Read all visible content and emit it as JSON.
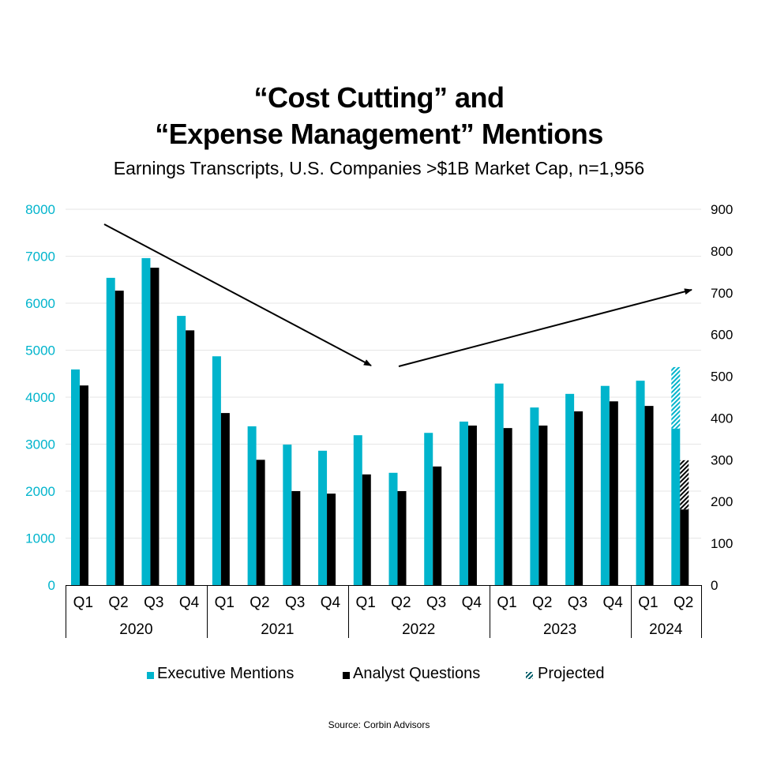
{
  "title_line1": "“Cost Cutting” and",
  "title_line2": "“Expense Management” Mentions",
  "subtitle": "Earnings Transcripts, U.S. Companies >$1B Market Cap, n=1,956",
  "source": "Source: Corbin Advisors",
  "colors": {
    "executive": "#00B4CC",
    "analyst": "#000000",
    "grid": "#E6E6E6"
  },
  "legend": [
    {
      "label": "Executive Mentions",
      "swatch": "solid-teal"
    },
    {
      "label": "Analyst Questions",
      "swatch": "solid-black"
    },
    {
      "label": "Projected",
      "swatch": "hatched"
    }
  ],
  "chart_data": {
    "type": "bar",
    "title": "“Cost Cutting” and “Expense Management” Mentions",
    "subtitle": "Earnings Transcripts, U.S. Companies >$1B Market Cap, n=1,956",
    "categories": [
      "Q1",
      "Q2",
      "Q3",
      "Q4",
      "Q1",
      "Q2",
      "Q3",
      "Q4",
      "Q1",
      "Q2",
      "Q3",
      "Q4",
      "Q1",
      "Q2",
      "Q3",
      "Q4",
      "Q1",
      "Q2"
    ],
    "groups": [
      {
        "label": "2020",
        "count": 4
      },
      {
        "label": "2021",
        "count": 4
      },
      {
        "label": "2022",
        "count": 4
      },
      {
        "label": "2023",
        "count": 4
      },
      {
        "label": "2024",
        "count": 2
      }
    ],
    "left_axis": {
      "label": "Executive Mentions",
      "ylim": [
        0,
        8000
      ],
      "ticks": [
        0,
        1000,
        2000,
        3000,
        4000,
        5000,
        6000,
        7000,
        8000
      ]
    },
    "right_axis": {
      "label": "Analyst Questions",
      "ylim": [
        0,
        900
      ],
      "ticks": [
        0,
        100,
        200,
        300,
        400,
        500,
        600,
        700,
        800,
        900
      ]
    },
    "grid": true,
    "legend_position": "bottom",
    "series": [
      {
        "name": "Executive Mentions",
        "axis": "left",
        "values": [
          4590,
          6540,
          6960,
          5730,
          4870,
          3380,
          2990,
          2860,
          3190,
          2390,
          3240,
          3480,
          4290,
          3780,
          4070,
          4240,
          4350,
          3330
        ],
        "projected_total": [
          null,
          null,
          null,
          null,
          null,
          null,
          null,
          null,
          null,
          null,
          null,
          null,
          null,
          null,
          null,
          null,
          null,
          4640
        ]
      },
      {
        "name": "Analyst Questions",
        "axis": "right",
        "values": [
          478,
          705,
          760,
          610,
          412,
          300,
          225,
          219,
          265,
          225,
          284,
          382,
          376,
          382,
          416,
          440,
          429,
          181
        ],
        "projected_total": [
          null,
          null,
          null,
          null,
          null,
          null,
          null,
          null,
          null,
          null,
          null,
          null,
          null,
          null,
          null,
          null,
          null,
          299
        ]
      }
    ],
    "annotations": [
      {
        "type": "arrow",
        "direction": "down",
        "from": "2020 Q2",
        "to": "2022 Q1",
        "meaning": "declining trend"
      },
      {
        "type": "arrow",
        "direction": "up",
        "from": "2022 Q2",
        "to": "2024 Q2",
        "meaning": "rising trend"
      }
    ]
  }
}
